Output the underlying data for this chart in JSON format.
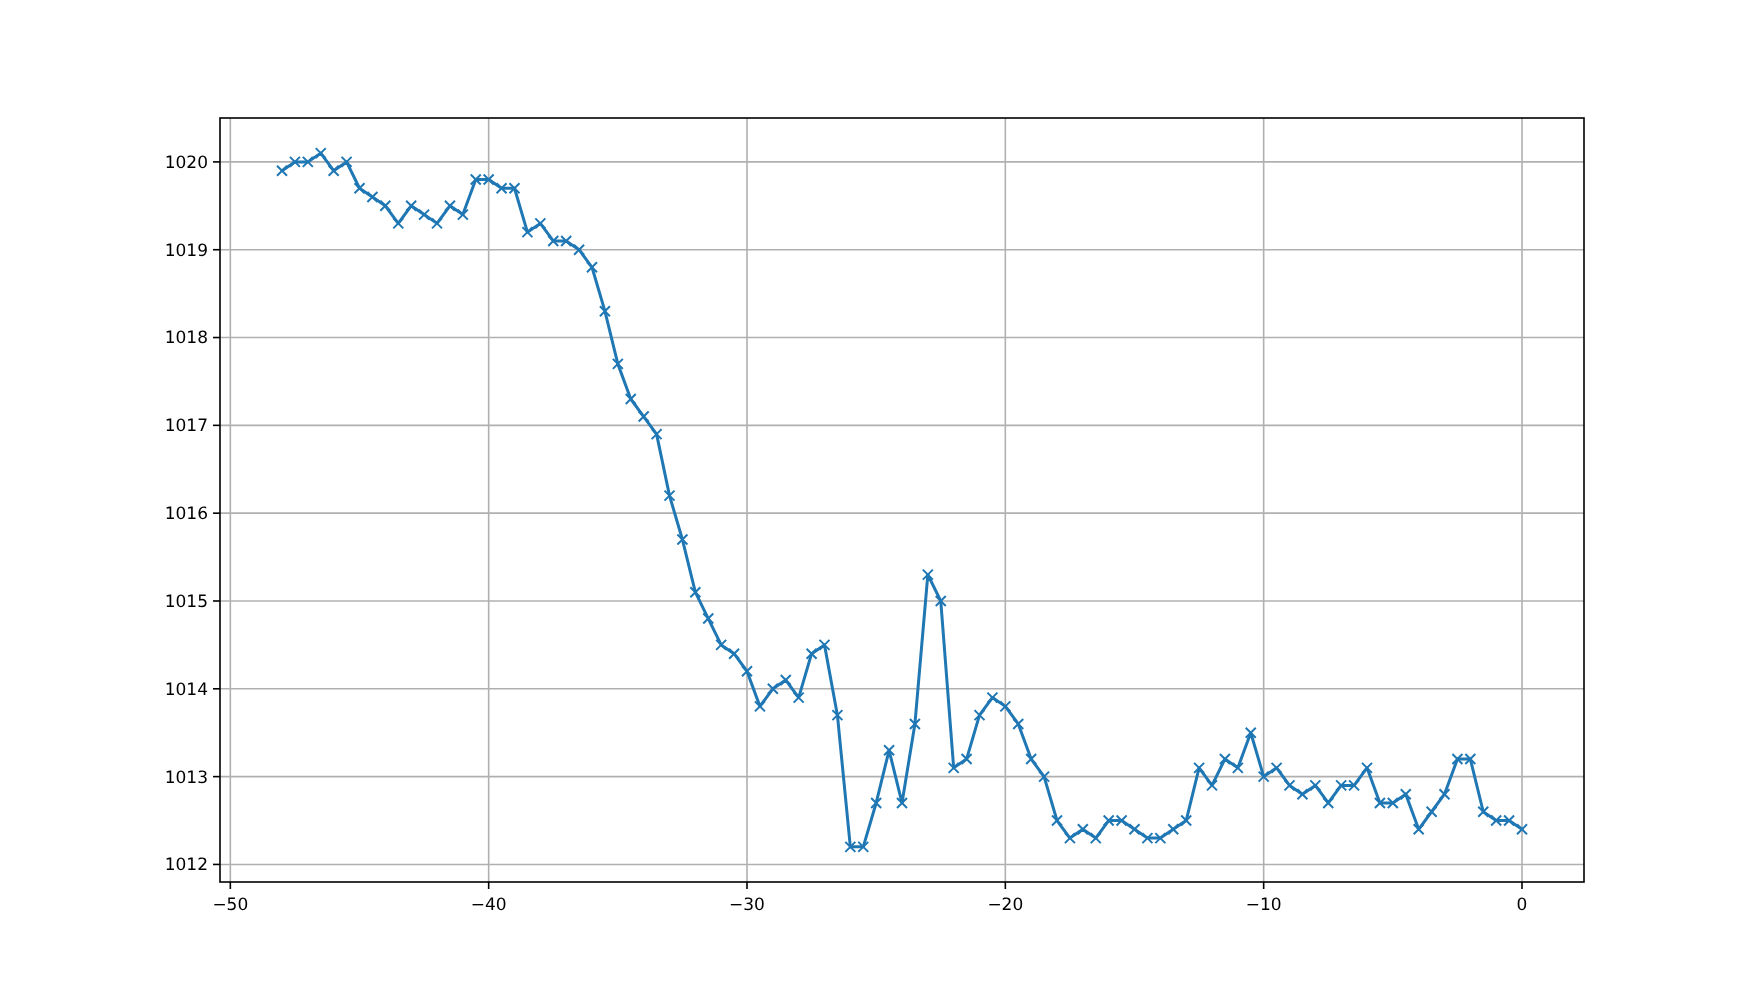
{
  "chart_data": {
    "type": "line",
    "marker": "cross",
    "line_style": "solid",
    "grid": true,
    "xlim": [
      -50.4,
      2.4
    ],
    "xticks": [
      {
        "value": -50,
        "label": "−50"
      },
      {
        "value": -40,
        "label": "−40"
      },
      {
        "value": -30,
        "label": "−30"
      },
      {
        "value": -20,
        "label": "−20"
      },
      {
        "value": -10,
        "label": "−10"
      },
      0
    ],
    "ylim": [
      1011.8,
      1020.5
    ],
    "yticks": [
      1012,
      1013,
      1014,
      1015,
      1016,
      1017,
      1018,
      1019,
      1020
    ],
    "x": [
      -48,
      -47.5,
      -47,
      -46.5,
      -46,
      -45.5,
      -45,
      -44.5,
      -44,
      -43.5,
      -43,
      -42.5,
      -42,
      -41.5,
      -41,
      -40.5,
      -40,
      -39.5,
      -39,
      -38.5,
      -38,
      -37.5,
      -37,
      -36.5,
      -36,
      -35.5,
      -35,
      -34.5,
      -34,
      -33.5,
      -33,
      -32.5,
      -32,
      -31.5,
      -31,
      -30.5,
      -30,
      -29.5,
      -29,
      -28.5,
      -28,
      -27.5,
      -27,
      -26.5,
      -26,
      -25.5,
      -25,
      -24.5,
      -24,
      -23.5,
      -23,
      -22.5,
      -22,
      -21.5,
      -21,
      -20.5,
      -20,
      -19.5,
      -19,
      -18.5,
      -18,
      -17.5,
      -17,
      -16.5,
      -16,
      -15.5,
      -15,
      -14.5,
      -14,
      -13.5,
      -13,
      -12.5,
      -12,
      -11.5,
      -11,
      -10.5,
      -10,
      -9.5,
      -9,
      -8.5,
      -8,
      -7.5,
      -7,
      -6.5,
      -6,
      -5.5,
      -5,
      -4.5,
      -4,
      -3.5,
      -3,
      -2.5,
      -2,
      -1.5,
      -1,
      -0.5,
      0
    ],
    "series": [
      {
        "color": "#1f77b4",
        "values": [
          1019.9,
          1020.0,
          1020.0,
          1020.1,
          1019.9,
          1020.0,
          1019.7,
          1019.6,
          1019.5,
          1019.3,
          1019.5,
          1019.4,
          1019.3,
          1019.5,
          1019.4,
          1019.8,
          1019.8,
          1019.7,
          1019.7,
          1019.2,
          1019.3,
          1019.1,
          1019.1,
          1019.0,
          1018.8,
          1018.3,
          1017.7,
          1017.3,
          1017.1,
          1016.9,
          1016.2,
          1015.7,
          1015.1,
          1014.8,
          1014.5,
          1014.4,
          1014.2,
          1013.8,
          1014.0,
          1014.1,
          1013.9,
          1014.4,
          1014.5,
          1013.7,
          1012.2,
          1012.2,
          1012.7,
          1013.3,
          1012.7,
          1013.6,
          1015.3,
          1015.0,
          1013.1,
          1013.2,
          1013.7,
          1013.9,
          1013.8,
          1013.6,
          1013.2,
          1013.0,
          1012.5,
          1012.3,
          1012.4,
          1012.3,
          1012.5,
          1012.5,
          1012.4,
          1012.3,
          1012.3,
          1012.4,
          1012.5,
          1013.1,
          1012.9,
          1013.2,
          1013.1,
          1013.5,
          1013.0,
          1013.1,
          1012.9,
          1012.8,
          1012.9,
          1012.7,
          1012.9,
          1012.9,
          1013.1,
          1012.7,
          1012.7,
          1012.8,
          1012.4,
          1012.6,
          1012.8,
          1013.2,
          1013.2,
          1012.6,
          1012.5,
          1012.5,
          1012.4
        ]
      }
    ]
  }
}
